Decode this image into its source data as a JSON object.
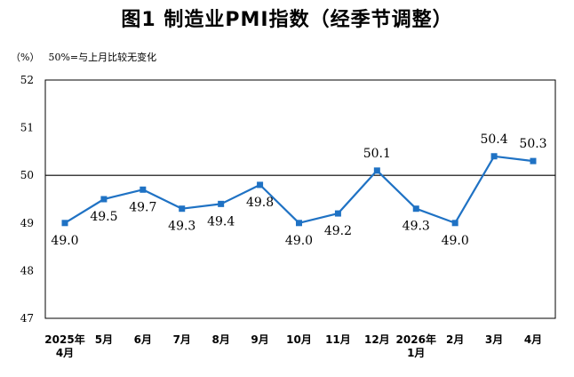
{
  "title": "图1  制造业PMI指数（经季节调整）",
  "note": {
    "unit": "（%）",
    "text": "50%=与上月比较无变化"
  },
  "chart_data": {
    "type": "line",
    "title": "图1  制造业PMI指数（经季节调整）",
    "ylabel": "（%）",
    "ylim": [
      47,
      52
    ],
    "yticks": [
      "52",
      "51",
      "50",
      "49",
      "48",
      "47"
    ],
    "reference_line": 50,
    "categories": [
      [
        "2025年",
        "4月"
      ],
      [
        "5月"
      ],
      [
        "6月"
      ],
      [
        "7月"
      ],
      [
        "8月"
      ],
      [
        "9月"
      ],
      [
        "10月"
      ],
      [
        "11月"
      ],
      [
        "12月"
      ],
      [
        "2026年",
        "1月"
      ],
      [
        "2月"
      ],
      [
        "3月"
      ],
      [
        "4月"
      ]
    ],
    "values": [
      49.0,
      49.5,
      49.7,
      49.3,
      49.4,
      49.8,
      49.0,
      49.2,
      50.1,
      49.3,
      49.0,
      50.4,
      50.3
    ],
    "data_labels": [
      "49.0",
      "49.5",
      "49.7",
      "49.3",
      "49.4",
      "49.8",
      "49.0",
      "49.2",
      "50.1",
      "49.3",
      "49.0",
      "50.4",
      "50.3"
    ],
    "label_position": [
      "below",
      "below",
      "below",
      "below",
      "below",
      "below",
      "below",
      "below",
      "above",
      "below",
      "below",
      "above",
      "above"
    ],
    "line_color": "#1f72c4",
    "grid": false
  }
}
